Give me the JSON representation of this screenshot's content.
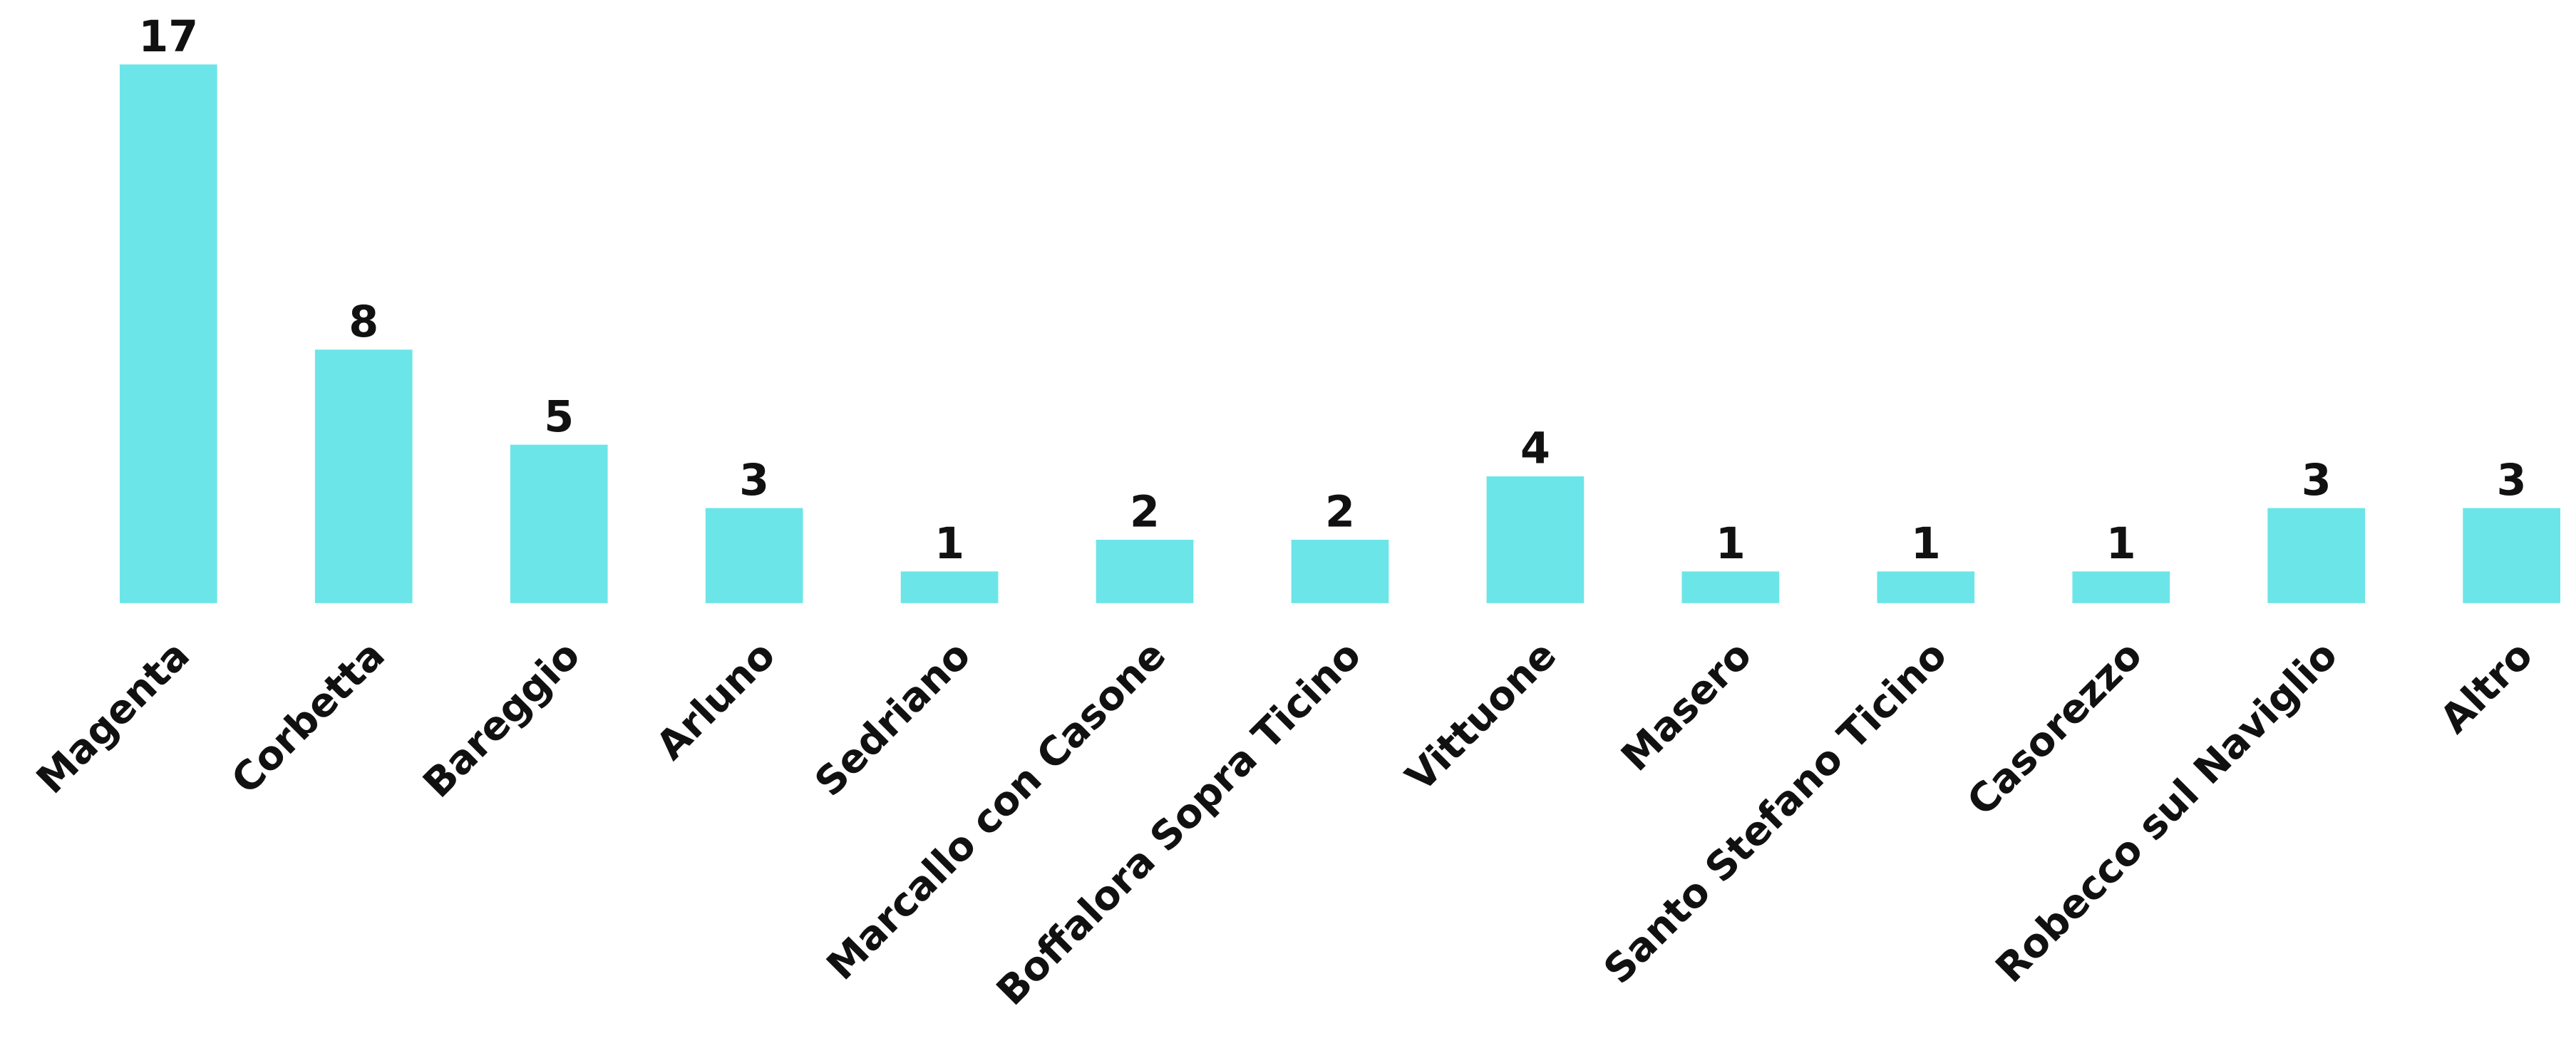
{
  "chart_data": {
    "type": "bar",
    "categories": [
      "Magenta",
      "Corbetta",
      "Bareggio",
      "Arluno",
      "Sedriano",
      "Marcallo con Casone",
      "Boffalora Sopra Ticino",
      "Vittuone",
      "Masero",
      "Santo Stefano Ticino",
      "Casorezzo",
      "Robecco sul Naviglio",
      "Altro"
    ],
    "values": [
      17,
      8,
      5,
      3,
      1,
      2,
      2,
      4,
      1,
      1,
      1,
      3,
      3
    ],
    "color": "#6ce5e8"
  }
}
